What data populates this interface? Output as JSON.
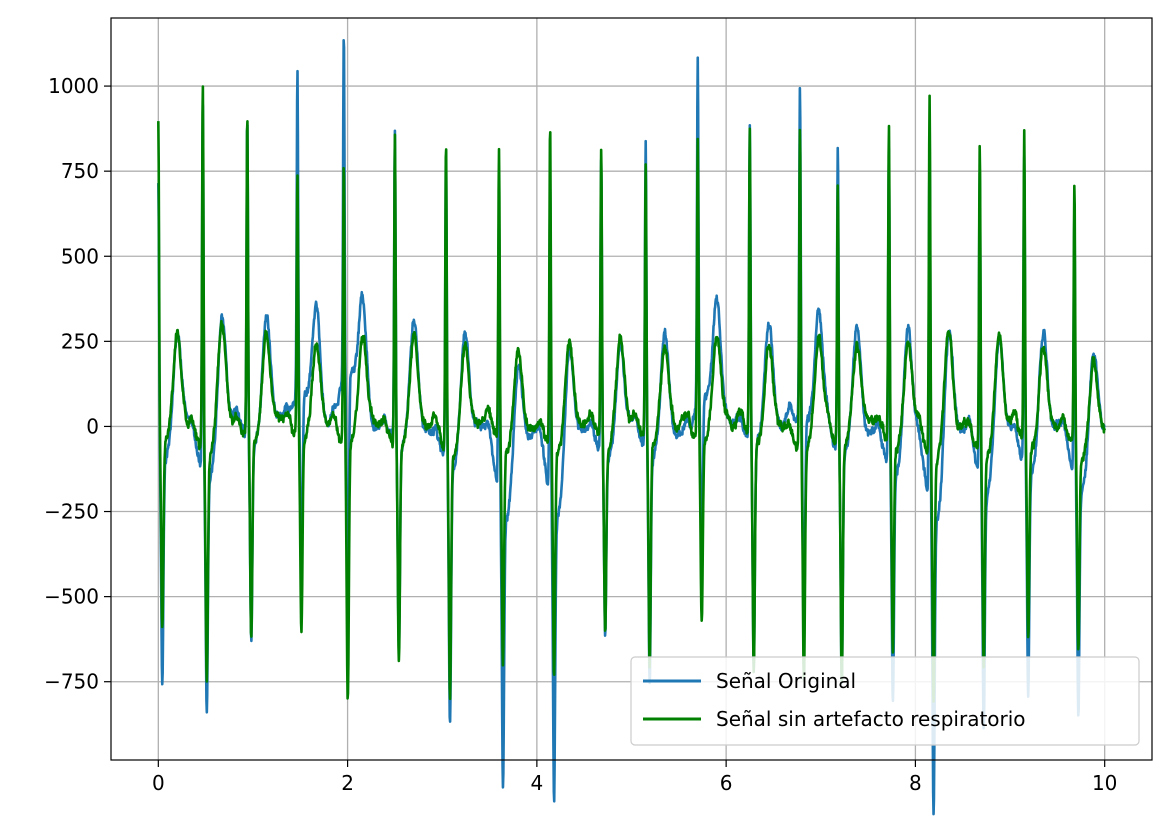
{
  "chart_data": {
    "type": "line",
    "title": "",
    "xlabel": "",
    "ylabel": "",
    "xlim": [
      -0.5,
      10.5
    ],
    "ylim": [
      -980,
      1200
    ],
    "grid": true,
    "legend_position": "bottom-right",
    "x_ticks": [
      0,
      2,
      4,
      6,
      8,
      10
    ],
    "x_tick_labels": [
      "0",
      "2",
      "4",
      "6",
      "8",
      "10"
    ],
    "y_ticks": [
      -750,
      -500,
      -250,
      0,
      250,
      500,
      750,
      1000
    ],
    "y_tick_labels": [
      "−750",
      "−500",
      "−250",
      "0",
      "250",
      "500",
      "750",
      "1000"
    ],
    "series": [
      {
        "name": "Señal Original",
        "color": "#1f77b4",
        "beats": [
          {
            "t": 0.0,
            "r": 810,
            "s": -670,
            "q": -100
          },
          {
            "t": 0.47,
            "r": 1090,
            "s": -690,
            "q": -180
          },
          {
            "t": 0.94,
            "r": 955,
            "s": -560,
            "q": -100
          },
          {
            "t": 1.47,
            "r": 955,
            "s": -570,
            "q": 100
          },
          {
            "t": 1.96,
            "r": 1010,
            "s": -750,
            "q": 180
          },
          {
            "t": 2.5,
            "r": 900,
            "s": -600,
            "q": -60
          },
          {
            "t": 3.04,
            "r": 900,
            "s": -760,
            "q": -120
          },
          {
            "t": 3.6,
            "r": 870,
            "s": -800,
            "q": -260
          },
          {
            "t": 4.14,
            "r": 950,
            "s": -815,
            "q": -300
          },
          {
            "t": 4.68,
            "r": 870,
            "s": -530,
            "q": -90
          },
          {
            "t": 5.15,
            "r": 905,
            "s": -660,
            "q": -70
          },
          {
            "t": 5.7,
            "r": 1010,
            "s": -520,
            "q": 90
          },
          {
            "t": 6.25,
            "r": 920,
            "s": -660,
            "q": -50
          },
          {
            "t": 6.78,
            "r": 980,
            "s": -670,
            "q": 30
          },
          {
            "t": 7.18,
            "r": 905,
            "s": -680,
            "q": -90
          },
          {
            "t": 7.72,
            "r": 930,
            "s": -655,
            "q": -140
          },
          {
            "t": 8.15,
            "r": 1060,
            "s": -880,
            "q": -280
          },
          {
            "t": 8.68,
            "r": 920,
            "s": -680,
            "q": -200
          },
          {
            "t": 9.15,
            "r": 900,
            "s": -650,
            "q": -140
          },
          {
            "t": 9.68,
            "r": 780,
            "s": -660,
            "q": -200
          }
        ]
      },
      {
        "name": "Señal sin artefacto respiratorio",
        "color": "#008000",
        "beats": [
          {
            "t": 0.0,
            "r": 935,
            "s": -550,
            "q": -40
          },
          {
            "t": 0.47,
            "r": 1095,
            "s": -650,
            "q": -80
          },
          {
            "t": 0.94,
            "r": 940,
            "s": -580,
            "q": -60
          },
          {
            "t": 1.47,
            "r": 775,
            "s": -575,
            "q": -40
          },
          {
            "t": 1.96,
            "r": 845,
            "s": -760,
            "q": -70
          },
          {
            "t": 2.5,
            "r": 910,
            "s": -620,
            "q": -60
          },
          {
            "t": 3.04,
            "r": 905,
            "s": -700,
            "q": -70
          },
          {
            "t": 3.6,
            "r": 870,
            "s": -630,
            "q": -90
          },
          {
            "t": 4.14,
            "r": 950,
            "s": -660,
            "q": -80
          },
          {
            "t": 4.68,
            "r": 870,
            "s": -535,
            "q": -60
          },
          {
            "t": 5.15,
            "r": 800,
            "s": -670,
            "q": -60
          },
          {
            "t": 5.7,
            "r": 885,
            "s": -530,
            "q": -50
          },
          {
            "t": 6.25,
            "r": 915,
            "s": -670,
            "q": -70
          },
          {
            "t": 6.78,
            "r": 955,
            "s": -670,
            "q": -60
          },
          {
            "t": 7.18,
            "r": 775,
            "s": -680,
            "q": -60
          },
          {
            "t": 7.72,
            "r": 930,
            "s": -600,
            "q": -80
          },
          {
            "t": 8.15,
            "r": 1065,
            "s": -690,
            "q": -100
          },
          {
            "t": 8.68,
            "r": 925,
            "s": -620,
            "q": -80
          },
          {
            "t": 9.15,
            "r": 900,
            "s": -570,
            "q": -70
          },
          {
            "t": 9.68,
            "r": 790,
            "s": -590,
            "q": -80
          }
        ]
      }
    ]
  }
}
